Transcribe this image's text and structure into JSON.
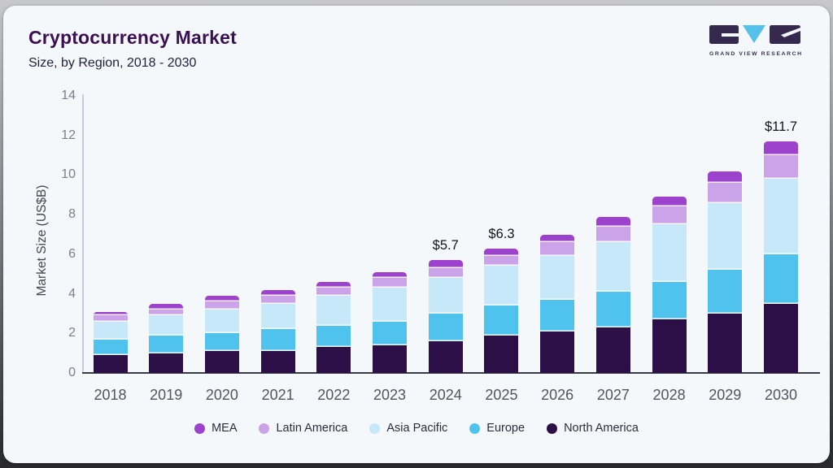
{
  "header": {
    "title": "Cryptocurrency Market",
    "subtitle": "Size, by Region, 2018 - 2030"
  },
  "logo": {
    "caption": "GRAND VIEW RESEARCH",
    "dark_color": "#352a4e",
    "accent_color": "#55c0e9"
  },
  "brand": {
    "title_color": "#3a1053",
    "card_bg": "#f5f8fb"
  },
  "chart_data": {
    "type": "bar",
    "stacked": true,
    "title": "Cryptocurrency Market Size, by Region, 2018 - 2030",
    "xlabel": "",
    "ylabel": "Market Size (US$B)",
    "ylim": [
      0,
      14
    ],
    "ytick_labels": [
      "0",
      "2",
      "4",
      "6",
      "8",
      "10",
      "12",
      "14"
    ],
    "grid": false,
    "legend_position": "bottom",
    "categories": [
      "2018",
      "2019",
      "2020",
      "2021",
      "2022",
      "2023",
      "2024",
      "2025",
      "2026",
      "2027",
      "2028",
      "2029",
      "2030"
    ],
    "series": [
      {
        "name": "North America",
        "color": "#2c0f47",
        "values": [
          0.9,
          1.0,
          1.1,
          1.1,
          1.3,
          1.4,
          1.6,
          1.9,
          2.1,
          2.3,
          2.7,
          3.0,
          3.5
        ]
      },
      {
        "name": "Europe",
        "color": "#4fc3ee",
        "values": [
          0.8,
          0.9,
          0.9,
          1.1,
          1.1,
          1.2,
          1.4,
          1.5,
          1.6,
          1.8,
          1.9,
          2.2,
          2.5
        ]
      },
      {
        "name": "Asia Pacific",
        "color": "#c6e8f8",
        "values": [
          0.9,
          1.0,
          1.2,
          1.3,
          1.5,
          1.7,
          1.8,
          2.0,
          2.2,
          2.5,
          2.9,
          3.4,
          3.8
        ]
      },
      {
        "name": "Latin America",
        "color": "#cba3e8",
        "values": [
          0.3,
          0.3,
          0.4,
          0.4,
          0.4,
          0.5,
          0.5,
          0.5,
          0.7,
          0.8,
          0.9,
          1.0,
          1.2
        ]
      },
      {
        "name": "MEA",
        "color": "#9c42cc",
        "values": [
          0.2,
          0.3,
          0.3,
          0.3,
          0.3,
          0.3,
          0.4,
          0.4,
          0.4,
          0.5,
          0.5,
          0.6,
          0.7
        ]
      }
    ],
    "totals": [
      3.1,
      3.5,
      3.9,
      4.2,
      4.6,
      5.1,
      5.7,
      6.3,
      7.0,
      7.9,
      8.9,
      10.2,
      11.7
    ],
    "annotations": [
      "",
      "",
      "",
      "",
      "",
      "",
      "$5.7",
      "$6.3",
      "",
      "",
      "",
      "",
      "$11.7"
    ],
    "legend_order": [
      "MEA",
      "Latin America",
      "Asia Pacific",
      "Europe",
      "North America"
    ]
  }
}
